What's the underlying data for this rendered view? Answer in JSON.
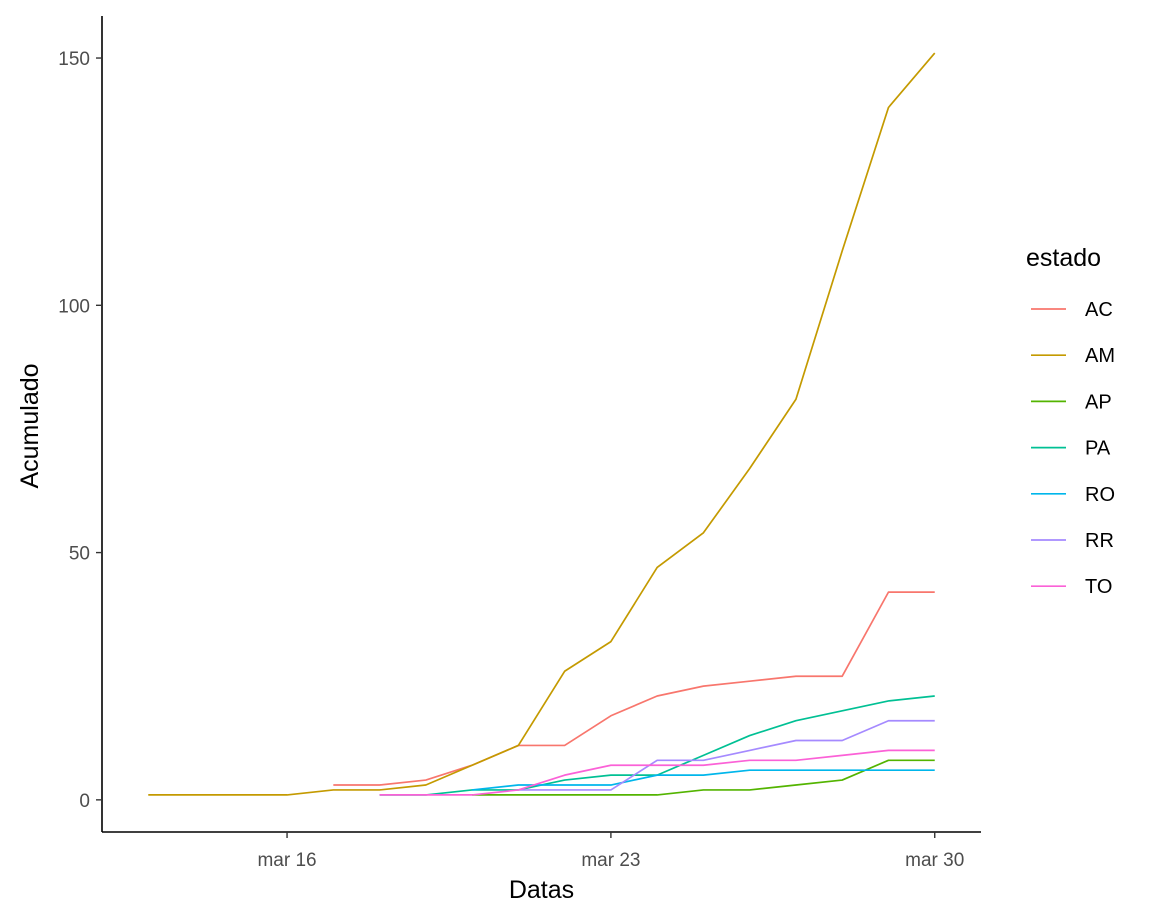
{
  "chart_data": {
    "type": "line",
    "xlabel": "Datas",
    "ylabel": "Acumulado",
    "x_ticks": [
      {
        "date": "2020-03-16",
        "label": "mar 16"
      },
      {
        "date": "2020-03-23",
        "label": "mar 23"
      },
      {
        "date": "2020-03-30",
        "label": "mar 30"
      }
    ],
    "y_ticks": [
      0,
      50,
      100,
      150
    ],
    "xlim": [
      "2020-03-12",
      "2020-03-31"
    ],
    "ylim": [
      -6.5,
      158.5
    ],
    "grid": false,
    "legend": {
      "title": "estado",
      "position": "right"
    },
    "series": [
      {
        "name": "AC",
        "color": "#F8766D",
        "points": [
          [
            "2020-03-17",
            3
          ],
          [
            "2020-03-18",
            3
          ],
          [
            "2020-03-19",
            4
          ],
          [
            "2020-03-20",
            7
          ],
          [
            "2020-03-21",
            11
          ],
          [
            "2020-03-22",
            11
          ],
          [
            "2020-03-23",
            17
          ],
          [
            "2020-03-24",
            21
          ],
          [
            "2020-03-25",
            23
          ],
          [
            "2020-03-26",
            24
          ],
          [
            "2020-03-27",
            25
          ],
          [
            "2020-03-28",
            25
          ],
          [
            "2020-03-29",
            42
          ],
          [
            "2020-03-30",
            42
          ]
        ]
      },
      {
        "name": "AM",
        "color": "#C49A00",
        "points": [
          [
            "2020-03-13",
            1
          ],
          [
            "2020-03-14",
            1
          ],
          [
            "2020-03-15",
            1
          ],
          [
            "2020-03-16",
            1
          ],
          [
            "2020-03-17",
            2
          ],
          [
            "2020-03-18",
            2
          ],
          [
            "2020-03-19",
            3
          ],
          [
            "2020-03-20",
            7
          ],
          [
            "2020-03-21",
            11
          ],
          [
            "2020-03-22",
            26
          ],
          [
            "2020-03-23",
            32
          ],
          [
            "2020-03-24",
            47
          ],
          [
            "2020-03-25",
            54
          ],
          [
            "2020-03-26",
            67
          ],
          [
            "2020-03-27",
            81
          ],
          [
            "2020-03-28",
            111
          ],
          [
            "2020-03-29",
            140
          ],
          [
            "2020-03-30",
            151
          ]
        ]
      },
      {
        "name": "AP",
        "color": "#53B400",
        "points": [
          [
            "2020-03-20",
            1
          ],
          [
            "2020-03-21",
            1
          ],
          [
            "2020-03-22",
            1
          ],
          [
            "2020-03-23",
            1
          ],
          [
            "2020-03-24",
            1
          ],
          [
            "2020-03-25",
            2
          ],
          [
            "2020-03-26",
            2
          ],
          [
            "2020-03-27",
            3
          ],
          [
            "2020-03-28",
            4
          ],
          [
            "2020-03-29",
            8
          ],
          [
            "2020-03-30",
            8
          ]
        ]
      },
      {
        "name": "PA",
        "color": "#00C094",
        "points": [
          [
            "2020-03-18",
            1
          ],
          [
            "2020-03-19",
            1
          ],
          [
            "2020-03-20",
            2
          ],
          [
            "2020-03-21",
            2
          ],
          [
            "2020-03-22",
            4
          ],
          [
            "2020-03-23",
            5
          ],
          [
            "2020-03-24",
            5
          ],
          [
            "2020-03-25",
            9
          ],
          [
            "2020-03-26",
            13
          ],
          [
            "2020-03-27",
            16
          ],
          [
            "2020-03-28",
            18
          ],
          [
            "2020-03-29",
            20
          ],
          [
            "2020-03-30",
            21
          ]
        ]
      },
      {
        "name": "RO",
        "color": "#00B6EB",
        "points": [
          [
            "2020-03-20",
            2
          ],
          [
            "2020-03-21",
            3
          ],
          [
            "2020-03-22",
            3
          ],
          [
            "2020-03-23",
            3
          ],
          [
            "2020-03-24",
            5
          ],
          [
            "2020-03-25",
            5
          ],
          [
            "2020-03-26",
            6
          ],
          [
            "2020-03-27",
            6
          ],
          [
            "2020-03-28",
            6
          ],
          [
            "2020-03-29",
            6
          ],
          [
            "2020-03-30",
            6
          ]
        ]
      },
      {
        "name": "RR",
        "color": "#A58AFF",
        "points": [
          [
            "2020-03-21",
            2
          ],
          [
            "2020-03-22",
            2
          ],
          [
            "2020-03-23",
            2
          ],
          [
            "2020-03-24",
            8
          ],
          [
            "2020-03-25",
            8
          ],
          [
            "2020-03-26",
            10
          ],
          [
            "2020-03-27",
            12
          ],
          [
            "2020-03-28",
            12
          ],
          [
            "2020-03-29",
            16
          ],
          [
            "2020-03-30",
            16
          ]
        ]
      },
      {
        "name": "TO",
        "color": "#FB61D7",
        "points": [
          [
            "2020-03-18",
            1
          ],
          [
            "2020-03-19",
            1
          ],
          [
            "2020-03-20",
            1
          ],
          [
            "2020-03-21",
            2
          ],
          [
            "2020-03-22",
            5
          ],
          [
            "2020-03-23",
            7
          ],
          [
            "2020-03-24",
            7
          ],
          [
            "2020-03-25",
            7
          ],
          [
            "2020-03-26",
            8
          ],
          [
            "2020-03-27",
            8
          ],
          [
            "2020-03-28",
            9
          ],
          [
            "2020-03-29",
            10
          ],
          [
            "2020-03-30",
            10
          ]
        ]
      }
    ]
  }
}
